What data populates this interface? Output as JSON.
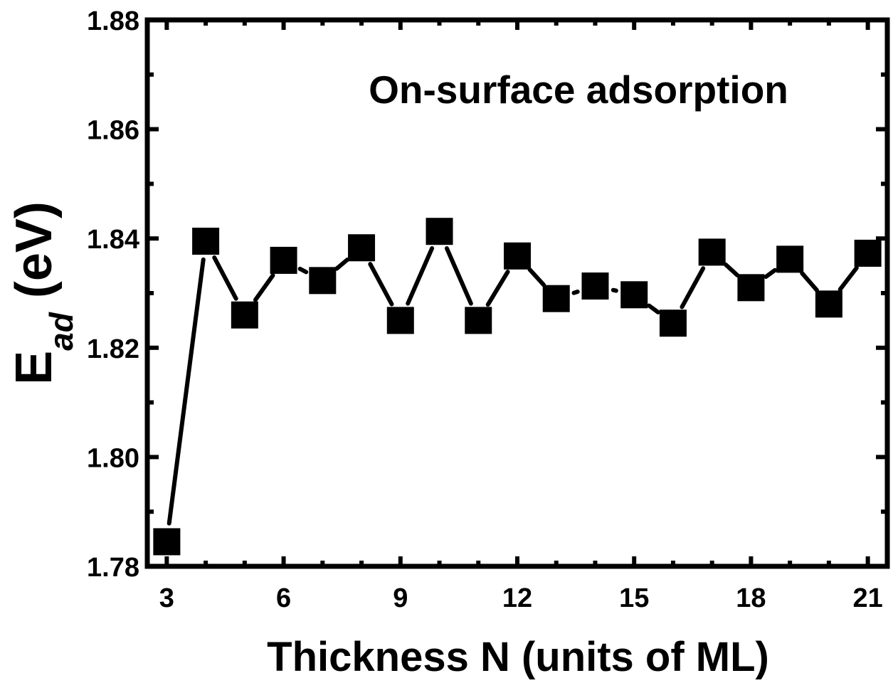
{
  "chart_data": {
    "type": "line",
    "annotation": "On-surface adsorption",
    "xlabel": "Thickness N (units of ML)",
    "ylabel": {
      "main": "E",
      "subscript": "ad",
      "unit": " (eV)"
    },
    "xlim": [
      2.5,
      21.5
    ],
    "ylim": [
      1.78,
      1.88
    ],
    "xticks": [
      3,
      6,
      9,
      12,
      15,
      18,
      21
    ],
    "xtick_labels": [
      "3",
      "6",
      "9",
      "12",
      "15",
      "18",
      "21"
    ],
    "xminor_ticks": [
      4,
      5,
      7,
      8,
      10,
      11,
      13,
      14,
      16,
      17,
      19,
      20
    ],
    "yticks": [
      1.78,
      1.8,
      1.82,
      1.84,
      1.86,
      1.88
    ],
    "ytick_labels": [
      "1.78",
      "1.80",
      "1.82",
      "1.84",
      "1.86",
      "1.88"
    ],
    "yminor_ticks": [
      1.79,
      1.81,
      1.83,
      1.85,
      1.87
    ],
    "grid": false,
    "series": [
      {
        "marker": "square",
        "color": "#000000",
        "x": [
          3,
          4,
          5,
          6,
          7,
          8,
          9,
          10,
          11,
          12,
          13,
          14,
          15,
          16,
          17,
          18,
          19,
          20,
          21
        ],
        "y": [
          1.7845,
          1.8395,
          1.826,
          1.836,
          1.8323,
          1.8383,
          1.825,
          1.8413,
          1.825,
          1.8368,
          1.829,
          1.8313,
          1.8297,
          1.8245,
          1.8375,
          1.831,
          1.8362,
          1.828,
          1.8373
        ]
      }
    ]
  }
}
